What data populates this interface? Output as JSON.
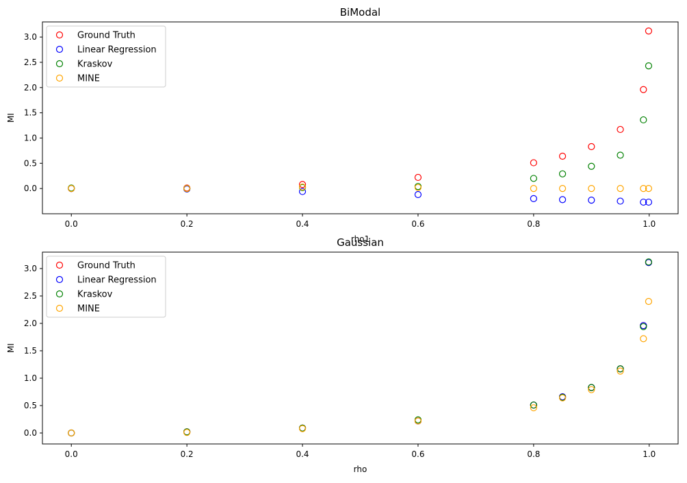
{
  "chart_data": [
    {
      "type": "scatter",
      "title": "BiModal",
      "xlabel": "rho1",
      "ylabel": "MI",
      "xlim": [
        -0.05,
        1.05
      ],
      "ylim": [
        -0.5,
        3.3
      ],
      "xticks": [
        "0.0",
        "0.2",
        "0.4",
        "0.6",
        "0.8",
        "1.0"
      ],
      "yticks": [
        "0.0",
        "0.5",
        "1.0",
        "1.5",
        "2.0",
        "2.5",
        "3.0"
      ],
      "grid": false,
      "legend_position": "top-left",
      "marker": "hollow-circle",
      "x": [
        0.0,
        0.2,
        0.4,
        0.6,
        0.8,
        0.85,
        0.9,
        0.95,
        0.99,
        0.999
      ],
      "series": [
        {
          "name": "Ground Truth",
          "color": "#ff0000",
          "values": [
            0.0,
            0.01,
            0.08,
            0.22,
            0.51,
            0.64,
            0.83,
            1.17,
            1.96,
            3.12
          ]
        },
        {
          "name": "Linear Regression",
          "color": "#0000ff",
          "values": [
            0.0,
            -0.01,
            -0.06,
            -0.12,
            -0.2,
            -0.22,
            -0.23,
            -0.25,
            -0.27,
            -0.27
          ]
        },
        {
          "name": "Kraskov",
          "color": "#008000",
          "values": [
            0.01,
            0.0,
            0.02,
            0.04,
            0.2,
            0.29,
            0.44,
            0.66,
            1.36,
            2.43
          ]
        },
        {
          "name": "MINE",
          "color": "#ffa500",
          "values": [
            0.0,
            0.0,
            0.03,
            0.02,
            0.0,
            0.0,
            0.0,
            0.0,
            0.0,
            0.0
          ]
        }
      ]
    },
    {
      "type": "scatter",
      "title": "Gaussian",
      "xlabel": "rho",
      "ylabel": "MI",
      "xlim": [
        -0.05,
        1.05
      ],
      "ylim": [
        -0.2,
        3.3
      ],
      "xticks": [
        "0.0",
        "0.2",
        "0.4",
        "0.6",
        "0.8",
        "1.0"
      ],
      "yticks": [
        "0.0",
        "0.5",
        "1.0",
        "1.5",
        "2.0",
        "2.5",
        "3.0"
      ],
      "grid": false,
      "legend_position": "top-left",
      "marker": "hollow-circle",
      "x": [
        0.0,
        0.2,
        0.4,
        0.6,
        0.8,
        0.85,
        0.9,
        0.95,
        0.99,
        0.999
      ],
      "series": [
        {
          "name": "Ground Truth",
          "color": "#ff0000",
          "values": [
            0.0,
            0.02,
            0.09,
            0.22,
            0.51,
            0.66,
            0.83,
            1.17,
            1.96,
            3.11
          ]
        },
        {
          "name": "Linear Regression",
          "color": "#0000ff",
          "values": [
            0.0,
            0.02,
            0.09,
            0.22,
            0.51,
            0.66,
            0.83,
            1.17,
            1.96,
            3.11
          ]
        },
        {
          "name": "Kraskov",
          "color": "#008000",
          "values": [
            0.0,
            0.02,
            0.09,
            0.24,
            0.51,
            0.65,
            0.83,
            1.17,
            1.94,
            3.12
          ]
        },
        {
          "name": "MINE",
          "color": "#ffa500",
          "values": [
            0.0,
            0.01,
            0.08,
            0.22,
            0.46,
            0.64,
            0.79,
            1.13,
            1.72,
            2.4
          ]
        }
      ]
    }
  ]
}
